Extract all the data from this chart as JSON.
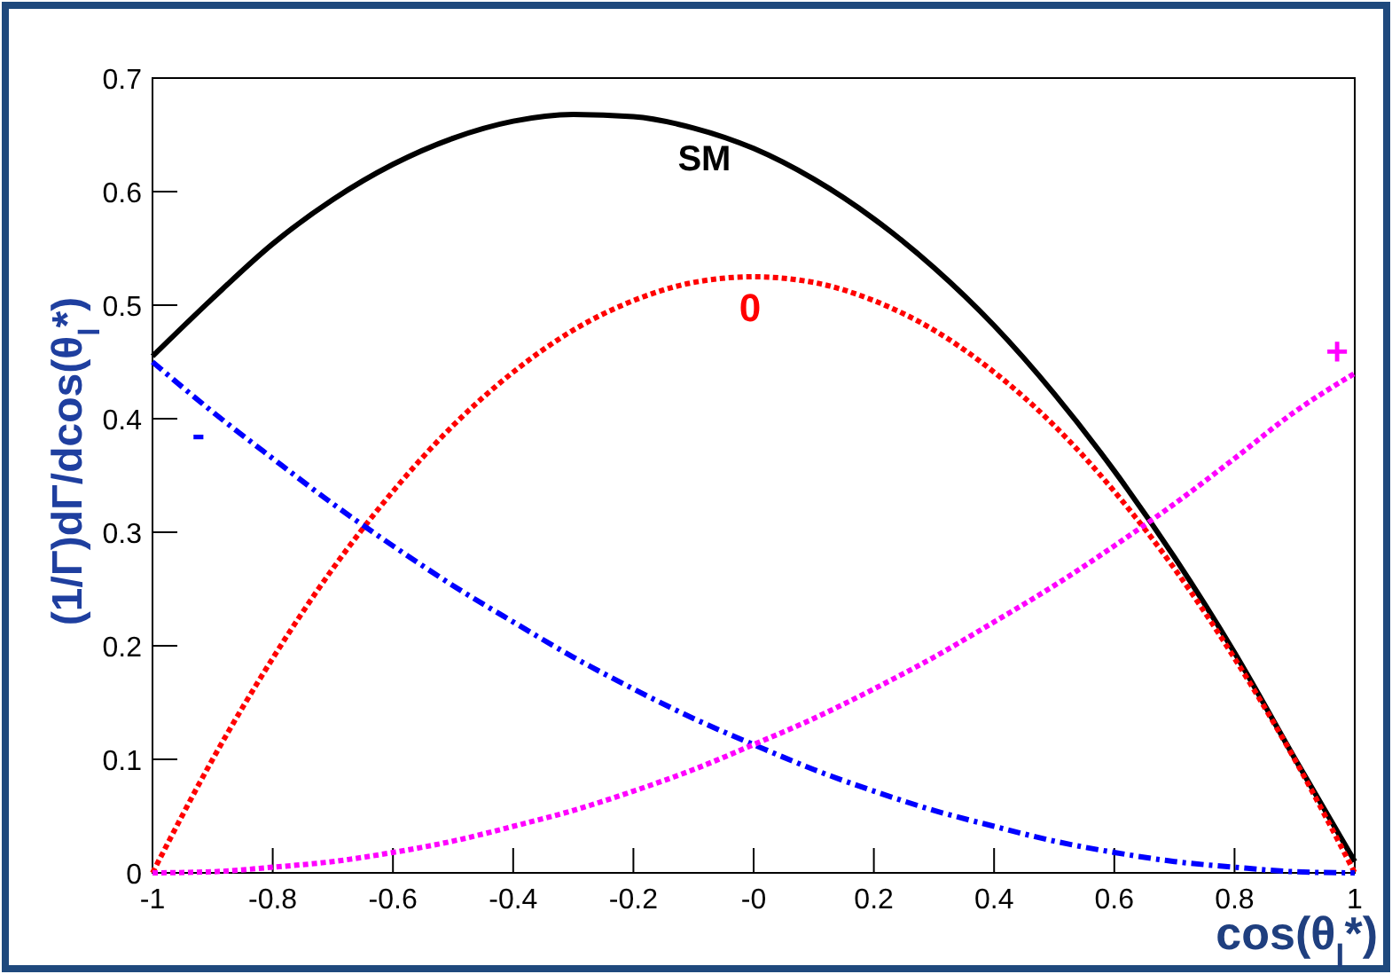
{
  "chart_data": {
    "type": "line",
    "xlabel": "cos(θ$_{l}$*)",
    "ylabel": "(1/Γ)dΓ/dcos(θ$_{l}$*)",
    "x": [
      -1,
      -0.9,
      -0.8,
      -0.7,
      -0.6,
      -0.5,
      -0.4,
      -0.3,
      -0.2,
      -0.1,
      0,
      0.1,
      0.2,
      0.3,
      0.4,
      0.5,
      0.6,
      0.7,
      0.8,
      0.9,
      1
    ],
    "xlim": [
      -1,
      1
    ],
    "ylim": [
      0,
      0.7
    ],
    "xticks": [
      -1,
      -0.8,
      -0.6,
      -0.4,
      -0.2,
      {
        "value": 0,
        "label": "-0"
      },
      0.2,
      0.4,
      0.6,
      0.8,
      1
    ],
    "yticks": [
      0,
      0.1,
      0.2,
      0.3,
      0.4,
      0.5,
      0.6,
      0.7
    ],
    "grid": false,
    "marker": "none",
    "series": [
      {
        "name": "SM",
        "color": "#000000",
        "line_style": "solid",
        "values": [
          0.455,
          0.506,
          0.554,
          0.593,
          0.624,
          0.647,
          0.662,
          0.668,
          0.666,
          0.656,
          0.638,
          0.611,
          0.576,
          0.533,
          0.482,
          0.422,
          0.354,
          0.278,
          0.194,
          0.101,
          0.01
        ]
      },
      {
        "name": "0",
        "color": "#ff0000",
        "line_style": "dotted",
        "values": [
          0,
          0.1,
          0.189,
          0.268,
          0.336,
          0.394,
          0.441,
          0.478,
          0.504,
          0.52,
          0.525,
          0.52,
          0.504,
          0.478,
          0.441,
          0.394,
          0.336,
          0.268,
          0.189,
          0.1,
          0
        ]
      },
      {
        "name": "-",
        "color": "#0000ff",
        "line_style": "dashed",
        "values": [
          0.45,
          0.406,
          0.365,
          0.325,
          0.288,
          0.253,
          0.221,
          0.19,
          0.162,
          0.136,
          0.113,
          0.091,
          0.072,
          0.055,
          0.041,
          0.028,
          0.018,
          0.01,
          0.005,
          0.001,
          0
        ]
      },
      {
        "name": "+",
        "color": "#ff00ff",
        "line_style": "dotted",
        "values": [
          0,
          0.001,
          0.005,
          0.01,
          0.018,
          0.028,
          0.041,
          0.055,
          0.072,
          0.091,
          0.113,
          0.136,
          0.162,
          0.19,
          0.221,
          0.253,
          0.288,
          0.325,
          0.365,
          0.406,
          0.44
        ]
      }
    ]
  }
}
